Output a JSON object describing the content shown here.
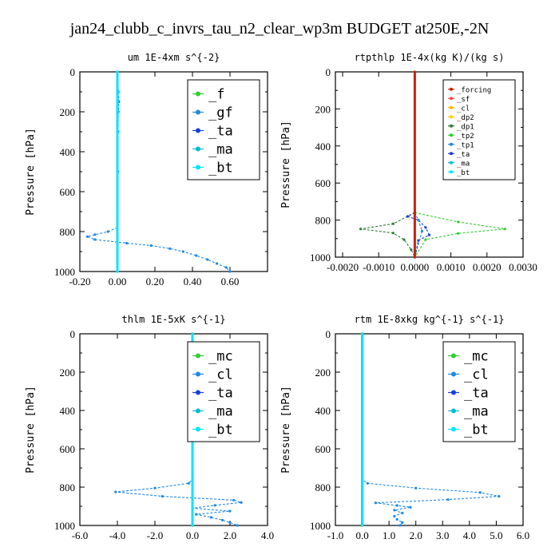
{
  "figure": {
    "title": "jan24_clubb_c_invrs_tau_n2_clear_wp3m  BUDGET at250E,-2N"
  },
  "chart_data": [
    {
      "type": "line",
      "title": "um  1E-4xm s^{-2}",
      "ylabel": "Pressure [hPa]",
      "xlim": [
        -0.2,
        0.8
      ],
      "ylim": [
        1000,
        0
      ],
      "xticks": [
        "-0.20",
        "0.00",
        "0.20",
        "0.40",
        "0.60"
      ],
      "xtick_values": [
        -0.2,
        0.0,
        0.2,
        0.4,
        0.6
      ],
      "yticks": [
        "0",
        "200",
        "400",
        "600",
        "800",
        "1000"
      ],
      "ytick_values": [
        0,
        200,
        400,
        600,
        800,
        1000
      ],
      "legend": {
        "placement": "upper-right",
        "entries": [
          "_f",
          "_gf",
          "_ta",
          "_ma",
          "_bt"
        ],
        "size": "large"
      },
      "series": [
        {
          "name": "_gf",
          "color": "#1e88e5",
          "points": [
            [
              0,
              0
            ],
            [
              0.005,
              100
            ],
            [
              0.008,
              150
            ],
            [
              0.005,
              200
            ],
            [
              0.004,
              300
            ],
            [
              0.003,
              500
            ],
            [
              0.0,
              700
            ],
            [
              0.0,
              780
            ],
            [
              -0.05,
              800
            ],
            [
              -0.12,
              815
            ],
            [
              -0.16,
              825
            ],
            [
              -0.12,
              840
            ],
            [
              0.05,
              858
            ],
            [
              0.18,
              870
            ],
            [
              0.28,
              885
            ],
            [
              0.35,
              900
            ],
            [
              0.42,
              920
            ],
            [
              0.48,
              940
            ],
            [
              0.53,
              960
            ],
            [
              0.58,
              980
            ],
            [
              0.6,
              1000
            ]
          ]
        },
        {
          "name": "_ta",
          "color": "#1565c0",
          "points": [
            [
              0.0,
              0
            ],
            [
              0.0,
              500
            ],
            [
              0.0,
              1000
            ]
          ]
        },
        {
          "name": "_ma",
          "color": "#00bcd4",
          "points": [
            [
              0.0,
              0
            ],
            [
              0.0,
              1000
            ]
          ]
        },
        {
          "name": "_f",
          "color": "#33cc33",
          "points": [
            [
              0.0,
              0
            ],
            [
              0.0,
              1000
            ]
          ]
        },
        {
          "name": "_bt",
          "color": "#00e5ff",
          "points": [
            [
              0.0,
              0
            ],
            [
              0.0,
              1000
            ]
          ]
        }
      ]
    },
    {
      "type": "line",
      "title": "rtpthlp  1E-4x(kg K)/(kg s)",
      "ylabel": "Pressure [hPa]",
      "xlim": [
        -0.0022,
        0.003
      ],
      "ylim": [
        1000,
        0
      ],
      "xticks": [
        "-0.0020",
        "-0.0010",
        "0.0000",
        "0.0010",
        "0.0020",
        "0.0030"
      ],
      "xtick_values": [
        -0.002,
        -0.001,
        0.0,
        0.001,
        0.002,
        0.003
      ],
      "yticks": [
        "0",
        "200",
        "400",
        "600",
        "800",
        "1000"
      ],
      "ytick_values": [
        0,
        200,
        400,
        600,
        800,
        1000
      ],
      "legend": {
        "placement": "upper-right",
        "entries": [
          "_forcing",
          "_sf",
          "_cl",
          "_dp2",
          "_dp1",
          "_tp2",
          "_tp1",
          "_ta",
          "_ma",
          "_bt"
        ],
        "size": "small"
      },
      "series": [
        {
          "name": "_tp2",
          "color": "#33cc33",
          "points": [
            [
              0.0,
              760
            ],
            [
              0.0012,
              810
            ],
            [
              0.0025,
              848
            ],
            [
              0.0012,
              872
            ],
            [
              0.0003,
              905
            ],
            [
              0.0,
              1000
            ]
          ]
        },
        {
          "name": "_dp1",
          "color": "#2e7d32",
          "points": [
            [
              0.0,
              760
            ],
            [
              -0.0006,
              820
            ],
            [
              -0.0015,
              848
            ],
            [
              -0.0006,
              870
            ],
            [
              -0.0003,
              905
            ],
            [
              -0.0001,
              960
            ],
            [
              0.0,
              1000
            ]
          ]
        },
        {
          "name": "_ta",
          "color": "#1a3fd6",
          "points": [
            [
              0.0,
              760
            ],
            [
              -0.0002,
              780
            ],
            [
              0.0001,
              800
            ],
            [
              0.0003,
              840
            ],
            [
              0.0004,
              880
            ],
            [
              0.0001,
              910
            ],
            [
              0.0,
              1000
            ]
          ]
        },
        {
          "name": "_tp1",
          "color": "#1e88e5",
          "points": [
            [
              0.0,
              760
            ],
            [
              0.0001,
              800
            ],
            [
              0.0002,
              860
            ],
            [
              0.0,
              1000
            ]
          ]
        },
        {
          "name": "_forcing",
          "color": "#cc2200",
          "points": [
            [
              0.0,
              0
            ],
            [
              0.0,
              1000
            ]
          ]
        }
      ]
    },
    {
      "type": "line",
      "title": "thlm  1E-5xK s^{-1}",
      "ylabel": "Pressure [hPa]",
      "xlim": [
        -6.0,
        4.0
      ],
      "ylim": [
        1000,
        0
      ],
      "xticks": [
        "-6.0",
        "-4.0",
        "-2.0",
        "0.0",
        "2.0",
        "4.0"
      ],
      "xtick_values": [
        -6,
        -4,
        -2,
        0,
        2,
        4
      ],
      "yticks": [
        "0",
        "200",
        "400",
        "600",
        "800",
        "1000"
      ],
      "ytick_values": [
        0,
        200,
        400,
        600,
        800,
        1000
      ],
      "legend": {
        "placement": "upper-right",
        "entries": [
          "_mc",
          "_cl",
          "_ta",
          "_ma",
          "_bt"
        ],
        "size": "large"
      },
      "series": [
        {
          "name": "_cl",
          "color": "#1e88e5",
          "points": [
            [
              0.0,
              0
            ],
            [
              0.0,
              760
            ],
            [
              -0.2,
              780
            ],
            [
              -2.0,
              805
            ],
            [
              -4.1,
              825
            ],
            [
              -1.6,
              848
            ],
            [
              2.2,
              868
            ],
            [
              2.6,
              880
            ],
            [
              1.2,
              895
            ],
            [
              0.0,
              910
            ],
            [
              2.0,
              925
            ],
            [
              0.2,
              942
            ],
            [
              1.0,
              958
            ],
            [
              1.6,
              972
            ],
            [
              2.0,
              985
            ],
            [
              2.4,
              1000
            ]
          ]
        },
        {
          "name": "_ta",
          "color": "#1565c0",
          "points": [
            [
              0.0,
              0
            ],
            [
              0.0,
              1000
            ]
          ]
        },
        {
          "name": "_mc",
          "color": "#33cc33",
          "points": [
            [
              0.0,
              0
            ],
            [
              0.0,
              1000
            ]
          ]
        },
        {
          "name": "_bt",
          "color": "#00e5ff",
          "points": [
            [
              0.0,
              0
            ],
            [
              0.0,
              1000
            ]
          ]
        }
      ]
    },
    {
      "type": "line",
      "title": "rtm  1E-8xkg kg^{-1} s^{-1}",
      "ylabel": "Pressure [hPa]",
      "xlim": [
        -1.0,
        6.0
      ],
      "ylim": [
        1000,
        0
      ],
      "xticks": [
        "-1.0",
        "0.0",
        "1.0",
        "2.0",
        "3.0",
        "4.0",
        "5.0",
        "6.0"
      ],
      "xtick_values": [
        -1,
        0,
        1,
        2,
        3,
        4,
        5,
        6
      ],
      "yticks": [
        "0",
        "200",
        "400",
        "600",
        "800",
        "1000"
      ],
      "ytick_values": [
        0,
        200,
        400,
        600,
        800,
        1000
      ],
      "legend": {
        "placement": "upper-right",
        "entries": [
          "_mc",
          "_cl",
          "_ta",
          "_ma",
          "_bt"
        ],
        "size": "large"
      },
      "series": [
        {
          "name": "_cl",
          "color": "#1e88e5",
          "points": [
            [
              0.0,
              0
            ],
            [
              0.0,
              760
            ],
            [
              0.2,
              780
            ],
            [
              2.0,
              805
            ],
            [
              4.4,
              828
            ],
            [
              5.1,
              848
            ],
            [
              3.2,
              865
            ],
            [
              0.5,
              882
            ],
            [
              1.3,
              896
            ],
            [
              1.8,
              905
            ],
            [
              1.2,
              920
            ],
            [
              1.5,
              935
            ],
            [
              1.2,
              952
            ],
            [
              1.3,
              968
            ],
            [
              1.5,
              985
            ],
            [
              1.4,
              1000
            ]
          ]
        },
        {
          "name": "_ta",
          "color": "#1565c0",
          "points": [
            [
              0.0,
              0
            ],
            [
              0.0,
              1000
            ]
          ]
        },
        {
          "name": "_mc",
          "color": "#33cc33",
          "points": [
            [
              0.0,
              0
            ],
            [
              0.0,
              1000
            ]
          ]
        },
        {
          "name": "_bt",
          "color": "#00e5ff",
          "points": [
            [
              0.0,
              0
            ],
            [
              0.0,
              1000
            ]
          ]
        }
      ]
    }
  ],
  "legend_colors": {
    "_f": "#33cc33",
    "_gf": "#1e88e5",
    "_ta": "#1a3fd6",
    "_ma": "#00bcd4",
    "_bt": "#00e5ff",
    "_mc": "#33cc33",
    "_cl": "#1e88e5",
    "_forcing": "#cc2200",
    "_sf": "#ff4444",
    "_cl_small": "#ffb300",
    "_dp2": "#ffcc00",
    "_dp1": "#2e7d32",
    "_tp2": "#33cc33",
    "_tp1": "#1e88e5"
  }
}
